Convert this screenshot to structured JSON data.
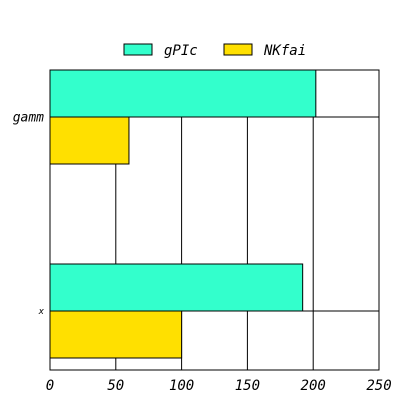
{
  "chart_data": {
    "type": "bar",
    "orientation": "horizontal",
    "categories": [
      "gamm",
      "x"
    ],
    "series": [
      {
        "name": "gPIc",
        "values": [
          202,
          192
        ],
        "color": "#33ffcc"
      },
      {
        "name": "NKfai",
        "values": [
          60,
          100
        ],
        "color": "#ffe000"
      }
    ],
    "xlim": [
      0,
      250
    ],
    "xticks": [
      0,
      50,
      100,
      150,
      200,
      250
    ],
    "title": "",
    "xlabel": "",
    "ylabel": "",
    "grid": true,
    "legend_position": "top"
  }
}
